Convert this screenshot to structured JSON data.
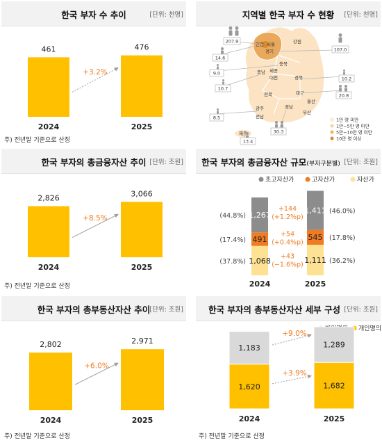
{
  "colors": {
    "yellow": "#ffc000",
    "orange": "#ef7b22",
    "dark_gray": "#8c8c8c",
    "light_yellow": "#fde293",
    "light_gray": "#d9d9d9",
    "map_light": "#fbe3c4",
    "map_dark": "#e9a85a",
    "arrow": "#9e9e9e"
  },
  "panels": {
    "count": {
      "title": "한국 부자 수 추이",
      "unit": "[단위: 천명]",
      "note": "주) 전년말 기준으로 산정"
    },
    "regional": {
      "title": "지역별 한국 부자 수 현황",
      "unit": "[단위: 천명]",
      "legend": [
        "1만 명 미만",
        "1만~5만 명 미만",
        "5만~10만 명 미만",
        "10만 명 이상"
      ],
      "regions": [
        {
          "name": "서울",
          "value": "207.9"
        },
        {
          "name": "인천",
          "value": "14.6"
        },
        {
          "name": "경기",
          "value": "107.0"
        },
        {
          "name": "강원",
          "value": ""
        },
        {
          "name": "충북",
          "value": "9.0"
        },
        {
          "name": "충남",
          "value": "10.7"
        },
        {
          "name": "세종",
          "value": ""
        },
        {
          "name": "대전",
          "value": ""
        },
        {
          "name": "경북",
          "value": "10.2"
        },
        {
          "name": "대구",
          "value": "20.8"
        },
        {
          "name": "전북",
          "value": ""
        },
        {
          "name": "광주",
          "value": "8.5"
        },
        {
          "name": "전남",
          "value": ""
        },
        {
          "name": "경남",
          "value": "30.3"
        },
        {
          "name": "울산",
          "value": ""
        },
        {
          "name": "부산",
          "value": ""
        },
        {
          "name": "제주",
          "value": "13.4"
        }
      ]
    },
    "fin": {
      "title": "한국 부자의 총금융자산 추이",
      "unit": "[단위: 조원]",
      "note": "주) 전년말 기준으로 산정"
    },
    "fin_scale": {
      "title": "한국 부자의 총금융자산 규모",
      "title_sub": "(부자구분별)",
      "unit": "[단위: 조원]"
    },
    "re": {
      "title": "한국 부자의 총부동산자산 추이",
      "unit": "[단위: 조원]",
      "note": "주) 전년말 기준으로 산정"
    },
    "re_detail": {
      "title": "한국 부자의 총부동산자산 세부 구성",
      "unit": "[단위: 조원]",
      "note": "주) 전년말 기준으로 산정"
    }
  },
  "chart_data": [
    {
      "id": "count",
      "type": "bar",
      "title": "한국 부자 수 추이",
      "categories": [
        "2024",
        "2025"
      ],
      "values": [
        461,
        476
      ],
      "value_labels": [
        "461",
        "476"
      ],
      "growth_label": "+3.2%",
      "ylim": [
        0,
        700
      ]
    },
    {
      "id": "regional",
      "type": "map",
      "title": "지역별 한국 부자 수 현황",
      "legend": [
        "1만 명 미만",
        "1만~5만 명 미만",
        "5만~10만 명 미만",
        "10만 명 이상"
      ]
    },
    {
      "id": "fin",
      "type": "bar",
      "title": "한국 부자의 총금융자산 추이",
      "categories": [
        "2024",
        "2025"
      ],
      "values": [
        2826,
        3066
      ],
      "value_labels": [
        "2,826",
        "3,066"
      ],
      "growth_label": "+8.5%",
      "ylim": [
        0,
        5000
      ]
    },
    {
      "id": "fin_scale",
      "type": "bar",
      "stacked": true,
      "title": "한국 부자의 총금융자산 규모",
      "categories": [
        "2024",
        "2025"
      ],
      "series": [
        {
          "name": "자산가",
          "values": [
            1068,
            1111
          ],
          "labels": [
            "1,068",
            "1,111"
          ],
          "shares": [
            "(37.8%)",
            "(36.2%)"
          ],
          "delta": [
            "+43",
            "(−1.6%p)"
          ]
        },
        {
          "name": "고자산가",
          "values": [
            491,
            545
          ],
          "labels": [
            "491",
            "545"
          ],
          "shares": [
            "(17.4%)",
            "(17.8%)"
          ],
          "delta": [
            "+54",
            "(+0.4%p)"
          ]
        },
        {
          "name": "초고자산가",
          "values": [
            1267,
            1411
          ],
          "labels": [
            "1,267",
            "1,411"
          ],
          "shares": [
            "(44.8%)",
            "(46.0%)"
          ],
          "delta": [
            "+144",
            "(+1.2%p)"
          ]
        }
      ],
      "legend_order": [
        "초고자산가",
        "고자산가",
        "자산가"
      ],
      "ylim": [
        0,
        3200
      ]
    },
    {
      "id": "re",
      "type": "bar",
      "title": "한국 부자의 총부동산자산 추이",
      "categories": [
        "2024",
        "2025"
      ],
      "values": [
        2802,
        2971
      ],
      "value_labels": [
        "2,802",
        "2,971"
      ],
      "growth_label": "+6.0%",
      "ylim": [
        0,
        4600
      ]
    },
    {
      "id": "re_detail",
      "type": "bar",
      "stacked": true,
      "title": "한국 부자의 총부동산자산 세부 구성",
      "categories": [
        "2024",
        "2025"
      ],
      "series": [
        {
          "name": "개인명의",
          "values": [
            1620,
            1682
          ],
          "labels": [
            "1,620",
            "1,682"
          ],
          "growth_label": "+3.9%"
        },
        {
          "name": "법인명의",
          "values": [
            1183,
            1289
          ],
          "labels": [
            "1,183",
            "1,289"
          ],
          "growth_label": "+9.0%"
        }
      ],
      "legend_order": [
        "법인명의",
        "개인명의"
      ],
      "ylim": [
        0,
        3300
      ]
    }
  ]
}
